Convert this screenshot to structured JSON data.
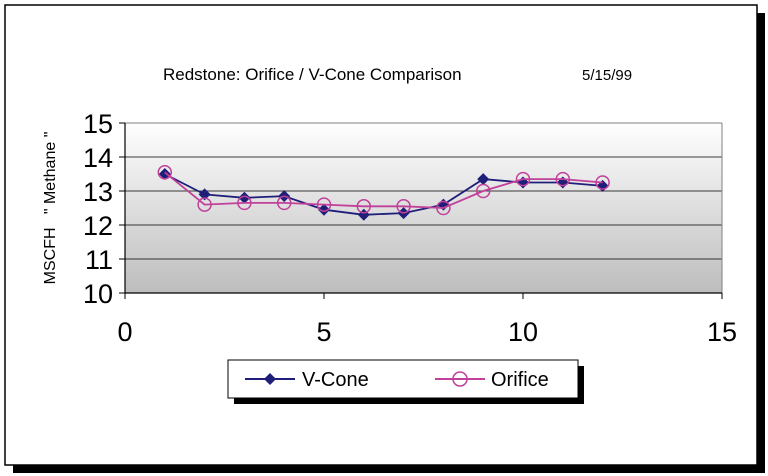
{
  "chart_data": {
    "type": "line",
    "title": "Redstone:  Orifice  / V-Cone Comparison",
    "subtitle": "5/15/99",
    "ylabel": "MSCFH   \" Methane \"",
    "xlabel": "",
    "xlim": [
      0,
      15
    ],
    "ylim": [
      10,
      15
    ],
    "x_ticks": [
      0,
      5,
      10,
      15
    ],
    "y_ticks": [
      10,
      11,
      12,
      13,
      14,
      15
    ],
    "grid": "horizontal",
    "legend_position": "bottom",
    "series": [
      {
        "name": "V-Cone",
        "color": "#1f1f7a",
        "marker": "diamond",
        "x": [
          1,
          2,
          3,
          4,
          5,
          6,
          7,
          8,
          9,
          10,
          11,
          12
        ],
        "y": [
          13.5,
          12.9,
          12.8,
          12.85,
          12.45,
          12.3,
          12.35,
          12.6,
          13.35,
          13.25,
          13.25,
          13.15
        ]
      },
      {
        "name": "Orifice",
        "color": "#c0409a",
        "marker": "circle",
        "x": [
          1,
          2,
          3,
          4,
          5,
          6,
          7,
          8,
          9,
          10,
          11,
          12
        ],
        "y": [
          13.55,
          12.6,
          12.65,
          12.65,
          12.6,
          12.55,
          12.55,
          12.5,
          13.0,
          13.35,
          13.35,
          13.25
        ]
      }
    ]
  }
}
